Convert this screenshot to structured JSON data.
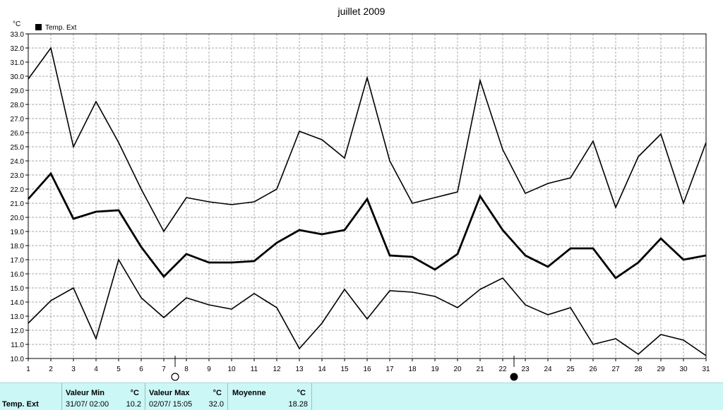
{
  "chart_data": {
    "type": "line",
    "title": "juillet 2009",
    "y_unit": "°C",
    "ylim": [
      10.0,
      33.0
    ],
    "y_ticks": [
      10.0,
      11.0,
      12.0,
      13.0,
      14.0,
      15.0,
      16.0,
      17.0,
      18.0,
      19.0,
      20.0,
      21.0,
      22.0,
      23.0,
      24.0,
      25.0,
      26.0,
      27.0,
      28.0,
      29.0,
      30.0,
      31.0,
      32.0,
      33.0
    ],
    "x": [
      1,
      2,
      3,
      4,
      5,
      6,
      7,
      8,
      9,
      10,
      11,
      12,
      13,
      14,
      15,
      16,
      17,
      18,
      19,
      20,
      21,
      22,
      23,
      24,
      25,
      26,
      27,
      28,
      29,
      30,
      31
    ],
    "grid": true,
    "legend": {
      "position": "top-left",
      "label": "Temp. Ext"
    },
    "series": [
      {
        "role": "max",
        "width": 1.6,
        "values": [
          29.8,
          32.0,
          25.0,
          28.2,
          25.3,
          22.0,
          19.0,
          21.4,
          21.1,
          20.9,
          21.1,
          22.0,
          26.1,
          25.5,
          24.2,
          29.9,
          24.0,
          21.0,
          21.4,
          21.8,
          29.7,
          24.8,
          21.7,
          22.4,
          22.8,
          25.4,
          20.7,
          24.3,
          25.9,
          21.0,
          25.3
        ]
      },
      {
        "role": "mean",
        "width": 2.8,
        "values": [
          21.3,
          23.1,
          19.9,
          20.4,
          20.5,
          17.9,
          15.8,
          17.4,
          16.8,
          16.8,
          16.9,
          18.2,
          19.1,
          18.8,
          19.1,
          21.3,
          17.3,
          17.2,
          16.3,
          17.4,
          21.5,
          19.1,
          17.3,
          16.5,
          17.8,
          17.8,
          15.7,
          16.8,
          18.5,
          17.0,
          17.3
        ]
      },
      {
        "role": "min",
        "width": 1.6,
        "values": [
          12.5,
          14.1,
          15.0,
          11.4,
          17.0,
          14.3,
          12.9,
          14.3,
          13.8,
          13.5,
          14.6,
          13.6,
          10.7,
          12.5,
          14.9,
          12.8,
          14.8,
          14.7,
          14.4,
          13.6,
          14.9,
          15.7,
          13.8,
          13.1,
          13.6,
          11.0,
          11.4,
          10.3,
          11.7,
          11.3,
          10.2
        ]
      }
    ],
    "moon_phases": [
      {
        "day": 7,
        "phase": "full-moon"
      },
      {
        "day": 22,
        "phase": "new-moon"
      }
    ]
  },
  "stats": {
    "row_label": "Temp. Ext",
    "min": {
      "header": "Valeur Min",
      "unit": "°C",
      "datetime": "31/07/  02:00",
      "value": "10.2"
    },
    "max": {
      "header": "Valeur Max",
      "unit": "°C",
      "datetime": "02/07/  15:05",
      "value": "32.0"
    },
    "mean": {
      "header": "Moyenne",
      "unit": "°C",
      "value": "18.28"
    }
  }
}
